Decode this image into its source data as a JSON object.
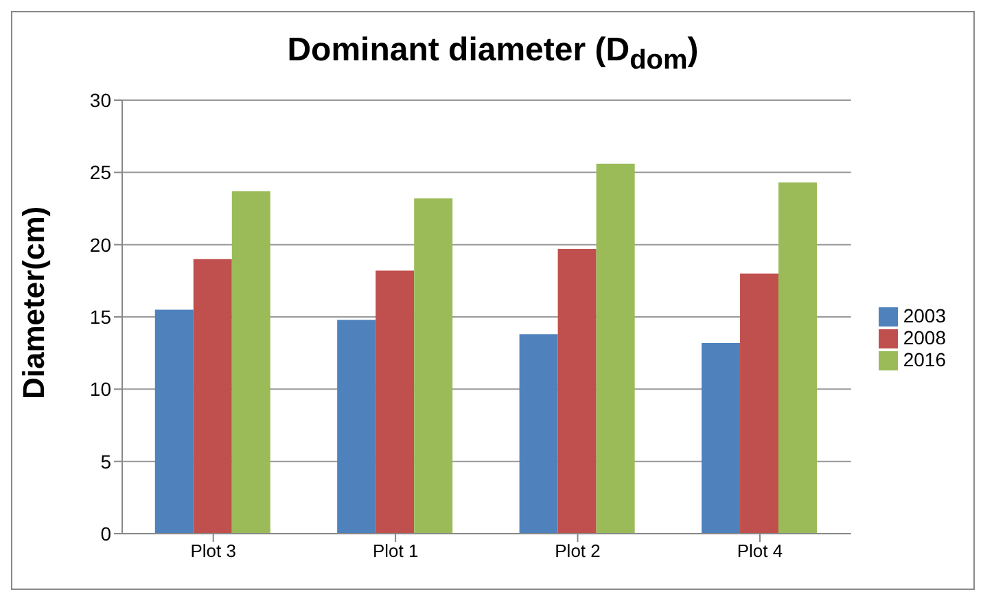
{
  "chart_data": {
    "type": "bar",
    "title": "Dominant diameter (D$_{dom}$)",
    "ylabel": "Diameter(cm)",
    "categories": [
      "Plot 3",
      "Plot 1",
      "Plot 2",
      "Plot 4"
    ],
    "series": [
      {
        "name": "2003",
        "color": "#4f81bd",
        "values": [
          15.5,
          14.8,
          13.8,
          13.2
        ]
      },
      {
        "name": "2008",
        "color": "#c0504d",
        "values": [
          19,
          18.2,
          19.7,
          18
        ]
      },
      {
        "name": "2016",
        "color": "#9bbb59",
        "values": [
          23.7,
          23.2,
          25.6,
          24.3
        ]
      }
    ],
    "ylim": [
      0,
      30
    ],
    "yticks": [
      0,
      5,
      10,
      15,
      20,
      25,
      30
    ],
    "grid": "y",
    "legend": "right"
  }
}
